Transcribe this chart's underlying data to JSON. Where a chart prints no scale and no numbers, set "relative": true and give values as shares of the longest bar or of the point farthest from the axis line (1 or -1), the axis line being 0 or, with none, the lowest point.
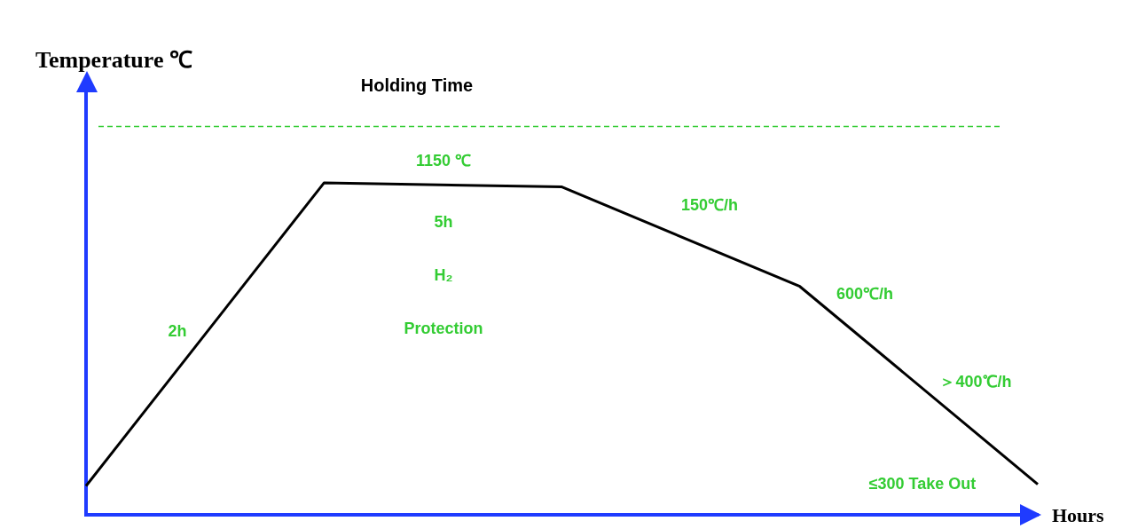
{
  "chart_data": {
    "type": "line",
    "xlabel": "Hours",
    "ylabel": "Temperature ℃",
    "relative": true,
    "categories": [
      null,
      null,
      null,
      null,
      null
    ],
    "series": [
      {
        "color": "#000000",
        "values": [
          0.087,
          1,
          0.988,
          0.688,
          0.092
        ]
      }
    ],
    "ref_lines": [
      {
        "axis": "y",
        "value": 1.17,
        "label": "Holding Time",
        "color": "#33cc33",
        "line_style": "dashed"
      }
    ],
    "annotations": [
      "1150 ℃",
      "5h",
      "H₂",
      "Protection",
      "2h",
      "150℃/h",
      "600℃/h",
      "＞400℃/h",
      "≤300 Take Out"
    ],
    "marker": "none",
    "line_style": "solid",
    "grid": false,
    "legend": false
  }
}
